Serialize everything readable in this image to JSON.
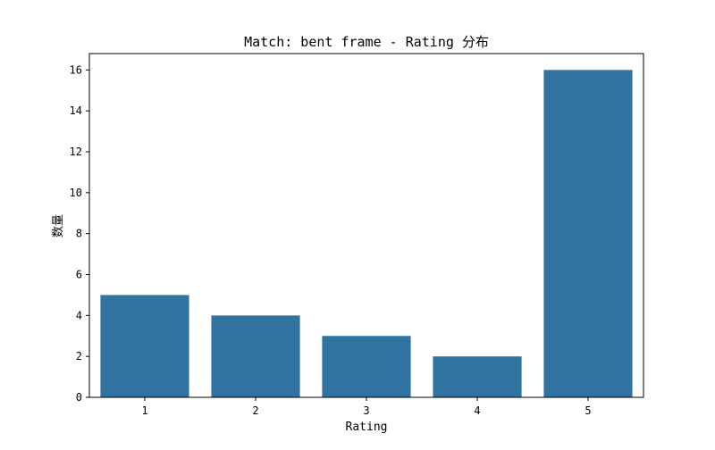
{
  "chart_data": {
    "type": "bar",
    "title": "Match: bent frame - Rating 分布",
    "xlabel": "Rating",
    "ylabel": "数量",
    "categories": [
      "1",
      "2",
      "3",
      "4",
      "5"
    ],
    "values": [
      5,
      4,
      3,
      2,
      16
    ],
    "ylim": [
      0,
      16.8
    ],
    "yticks": [
      "0",
      "2",
      "4",
      "6",
      "8",
      "10",
      "12",
      "14",
      "16"
    ],
    "bar_color": "#3274a1",
    "grid": false,
    "legend": "none"
  }
}
